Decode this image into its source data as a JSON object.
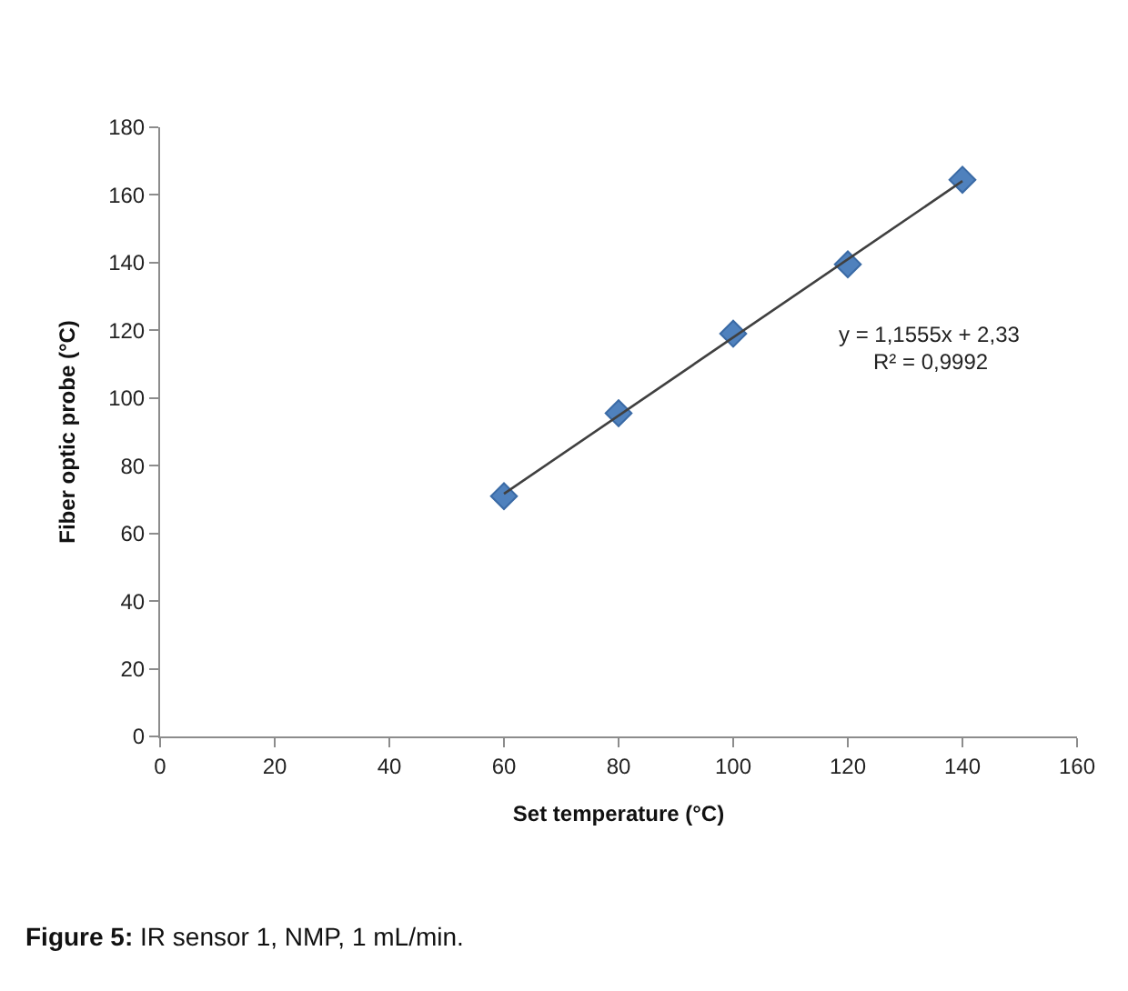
{
  "chart_data": {
    "type": "scatter",
    "xlabel": "Set temperature (°C)",
    "ylabel": "Fiber optic probe (°C)",
    "x": [
      60,
      80,
      100,
      120,
      140
    ],
    "series": [
      {
        "color": "#4f81bd",
        "marker": "diamond",
        "values": [
          71,
          95.5,
          119,
          139.5,
          164.5
        ]
      },
      {
        "type": "line",
        "color": "#404040",
        "x": [
          60,
          140
        ],
        "values": [
          71.7,
          164.1
        ]
      }
    ],
    "xlim": [
      0,
      160
    ],
    "xticks": [
      0,
      20,
      40,
      60,
      80,
      100,
      120,
      140,
      160
    ],
    "ylim": [
      0,
      180
    ],
    "yticks": [
      0,
      20,
      40,
      60,
      80,
      100,
      120,
      140,
      160,
      180
    ],
    "legend": false,
    "annotations": [
      "y = 1,1555x + 2,33",
      "R² = 0,9992",
      "Figure 5: IR sensor 1, NMP, 1 mL/min."
    ]
  }
}
